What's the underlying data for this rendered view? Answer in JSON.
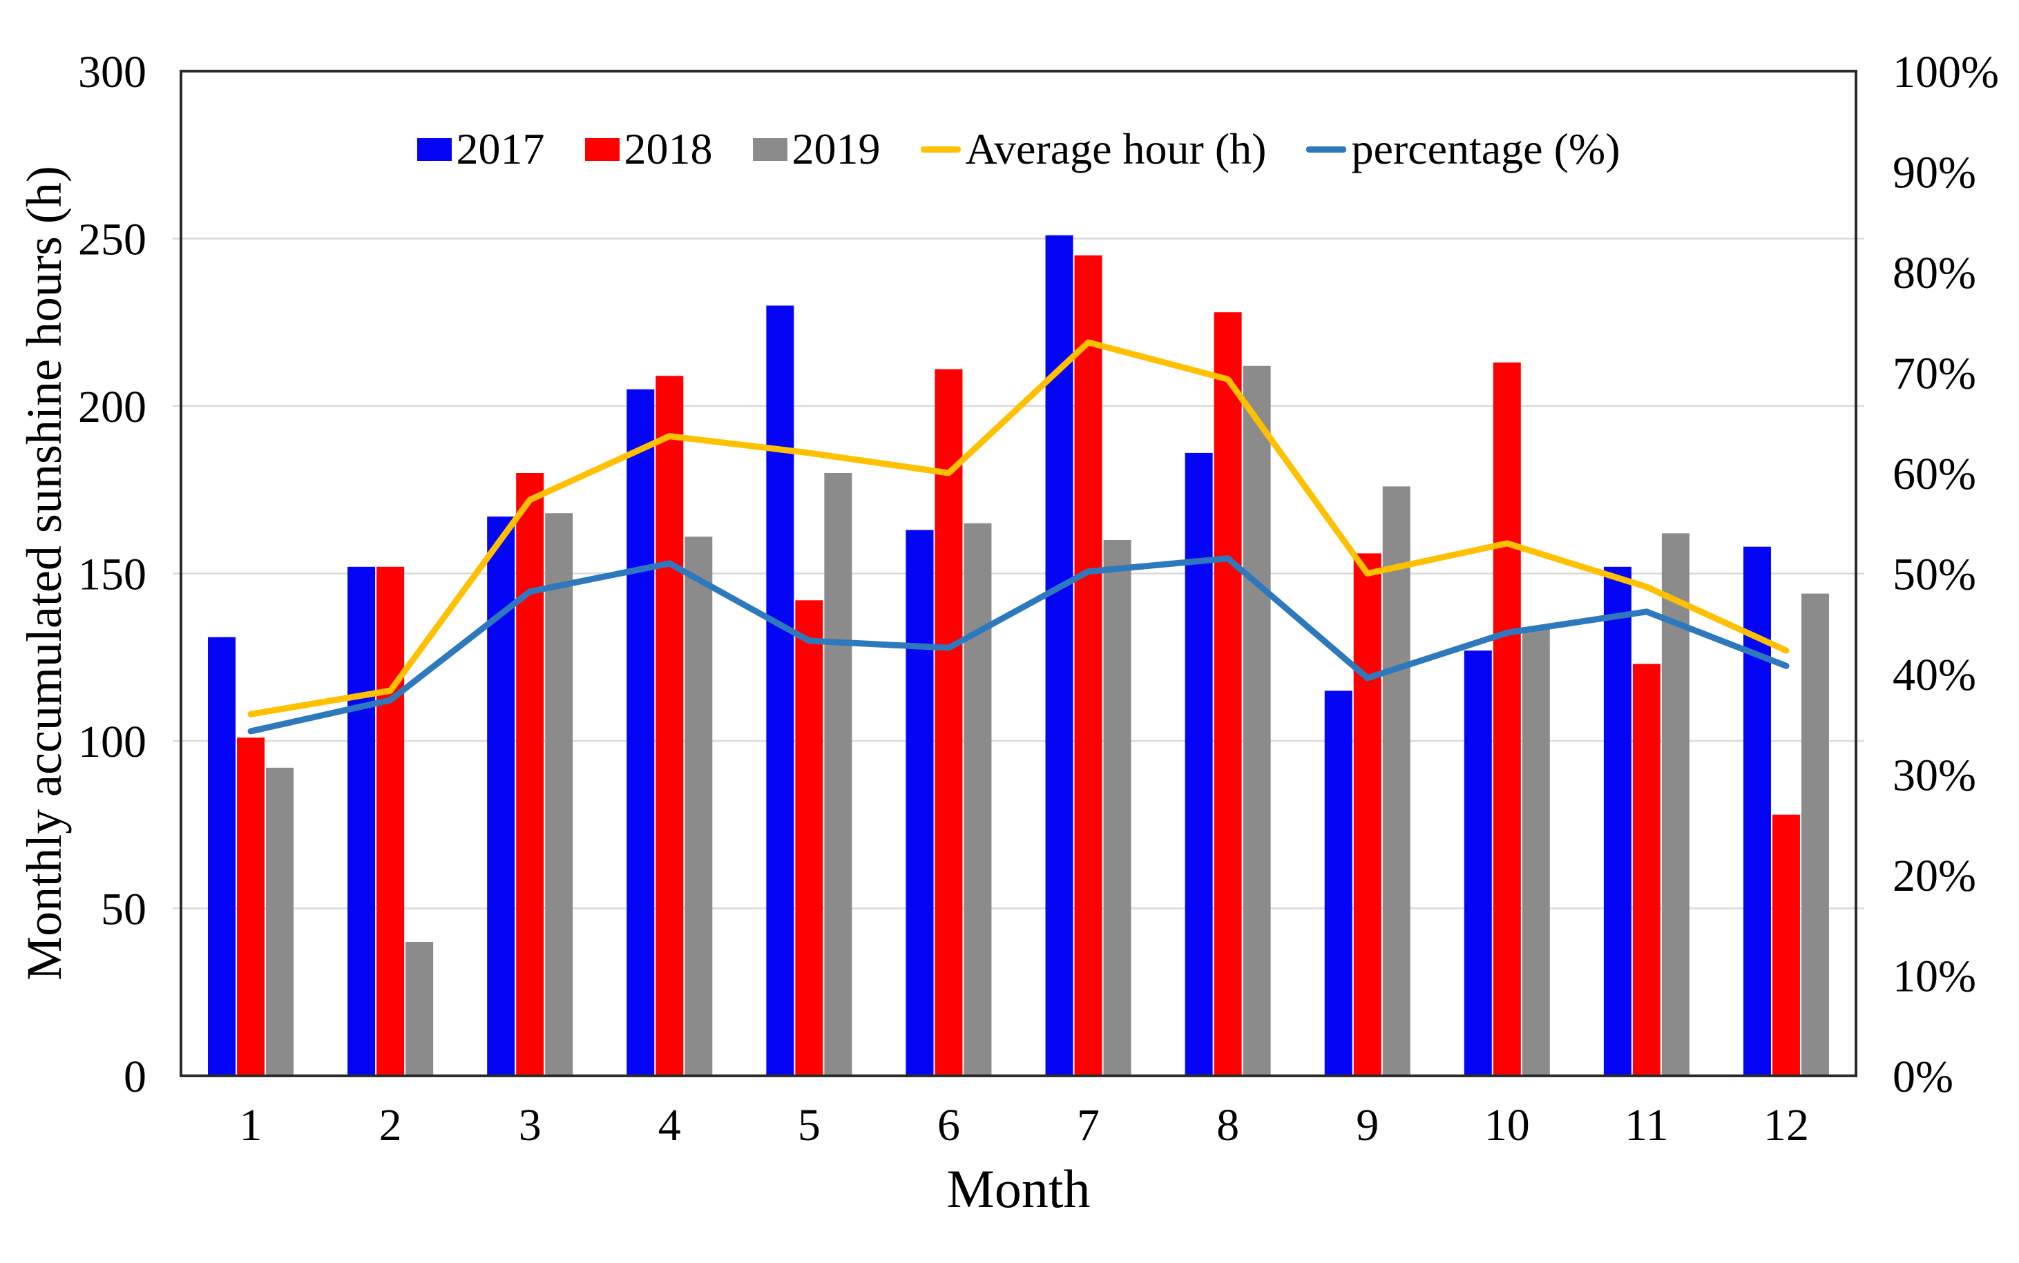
{
  "chart_data": {
    "type": "bar",
    "subtype": "grouped-bars-with-overlaid-lines",
    "title": "",
    "xlabel": "Month",
    "ylabel_left": "Monthly accumulated sunshine hours (h)",
    "ylabel_right": "",
    "categories": [
      "1",
      "2",
      "3",
      "4",
      "5",
      "6",
      "7",
      "8",
      "9",
      "10",
      "11",
      "12"
    ],
    "left_axis": {
      "min": 0,
      "max": 300,
      "step": 50,
      "tick_labels": [
        "0",
        "50",
        "100",
        "150",
        "200",
        "250",
        "300"
      ]
    },
    "right_axis": {
      "min": 0,
      "max": 100,
      "step": 10,
      "tick_labels": [
        "0%",
        "10%",
        "20%",
        "30%",
        "40%",
        "50%",
        "60%",
        "70%",
        "80%",
        "90%",
        "100%"
      ]
    },
    "grid": {
      "horizontal": true,
      "at_left_axis_step": 50
    },
    "legend_position": "top-center",
    "series": [
      {
        "name": "2017",
        "type": "bar",
        "axis": "left",
        "color": "#0505F5",
        "values": [
          131,
          152,
          167,
          205,
          230,
          163,
          251,
          186,
          115,
          127,
          152,
          158
        ]
      },
      {
        "name": "2018",
        "type": "bar",
        "axis": "left",
        "color": "#FE0000",
        "values": [
          101,
          152,
          180,
          209,
          142,
          211,
          245,
          228,
          156,
          213,
          123,
          78
        ]
      },
      {
        "name": "2019",
        "type": "bar",
        "axis": "left",
        "color": "#8B8B8B",
        "values": [
          92,
          40,
          168,
          161,
          180,
          165,
          160,
          212,
          176,
          134,
          162,
          144
        ]
      },
      {
        "name": "Average hour (h)",
        "type": "line",
        "axis": "left",
        "color": "#FFC000",
        "values": [
          108,
          115,
          172,
          191,
          186,
          180,
          219,
          208,
          150,
          159,
          146,
          127
        ]
      },
      {
        "name": "percentage (%)",
        "type": "line",
        "axis": "right",
        "color": "#2E79BD",
        "values": [
          34.3,
          37.4,
          48.2,
          51.0,
          43.3,
          42.6,
          50.2,
          51.5,
          39.6,
          44.1,
          46.2,
          40.8
        ]
      }
    ],
    "colors": {
      "background": "#FFFFFF",
      "gridline": "#D9D9D9",
      "plot_border": "#2B2B2B",
      "text": "#000000"
    }
  }
}
